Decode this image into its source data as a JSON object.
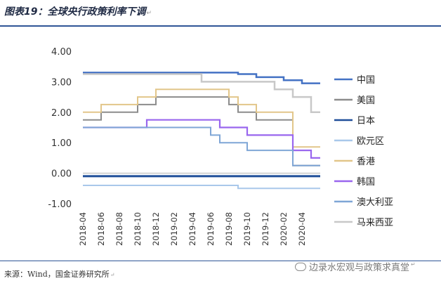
{
  "header": {
    "title": "图表19：全球央行政策利率下调"
  },
  "footer": {
    "source": "来源：Wind，国金证券研究所",
    "watermark": "边录水宏观与政策求真堂"
  },
  "colors": {
    "rule": "#2f5597",
    "zero_line": "#b0b0b0"
  },
  "chart_data": {
    "type": "line",
    "step": true,
    "title": "",
    "xlabel": "",
    "ylabel": "",
    "ylim": [
      -1.0,
      4.0
    ],
    "yticks": [
      "4.00",
      "3.00",
      "2.00",
      "1.00",
      "0.00",
      "-1.00"
    ],
    "ytick_values": [
      4,
      3,
      2,
      1,
      0,
      -1
    ],
    "xlim": [
      "2018-04",
      "2020-06"
    ],
    "x_tick_labels": [
      "2018-04",
      "2018-06",
      "2018-08",
      "2018-10",
      "2018-12",
      "2019-02",
      "2019-04",
      "2019-06",
      "2019-08",
      "2019-10",
      "2019-12",
      "2020-02",
      "2020-04"
    ],
    "grid": false,
    "legend_position": "right",
    "series": [
      {
        "name": "中国",
        "color": "#4472c4",
        "width": 2.5,
        "points": [
          [
            "2018-04",
            3.3
          ],
          [
            "2019-09",
            3.25
          ],
          [
            "2019-11",
            3.15
          ],
          [
            "2020-02",
            3.05
          ],
          [
            "2020-04",
            2.95
          ],
          [
            "2020-06",
            2.95
          ]
        ]
      },
      {
        "name": "美国",
        "color": "#8c8c8c",
        "width": 2,
        "points": [
          [
            "2018-04",
            1.75
          ],
          [
            "2018-06",
            2.0
          ],
          [
            "2018-10",
            2.25
          ],
          [
            "2018-12",
            2.5
          ],
          [
            "2019-08",
            2.25
          ],
          [
            "2019-09",
            2.0
          ],
          [
            "2019-11",
            1.75
          ],
          [
            "2020-03",
            1.25
          ],
          [
            "2020-03",
            0.25
          ],
          [
            "2020-06",
            0.25
          ]
        ]
      },
      {
        "name": "日本",
        "color": "#1f4e99",
        "width": 3,
        "points": [
          [
            "2018-04",
            -0.1
          ],
          [
            "2020-06",
            -0.1
          ]
        ]
      },
      {
        "name": "欧元区",
        "color": "#a9c8ea",
        "width": 2,
        "points": [
          [
            "2018-04",
            -0.4
          ],
          [
            "2019-09",
            -0.5
          ],
          [
            "2020-06",
            -0.5
          ]
        ]
      },
      {
        "name": "香港",
        "color": "#e2c68a",
        "width": 2,
        "points": [
          [
            "2018-04",
            2.0
          ],
          [
            "2018-06",
            2.25
          ],
          [
            "2018-10",
            2.5
          ],
          [
            "2018-12",
            2.75
          ],
          [
            "2019-08",
            2.5
          ],
          [
            "2019-09",
            2.25
          ],
          [
            "2019-11",
            2.0
          ],
          [
            "2020-03",
            1.5
          ],
          [
            "2020-03",
            0.86
          ],
          [
            "2020-06",
            0.86
          ]
        ]
      },
      {
        "name": "韩国",
        "color": "#9966ee",
        "width": 2.2,
        "points": [
          [
            "2018-04",
            1.5
          ],
          [
            "2018-11",
            1.75
          ],
          [
            "2019-07",
            1.5
          ],
          [
            "2019-10",
            1.25
          ],
          [
            "2020-03",
            0.75
          ],
          [
            "2020-05",
            0.5
          ],
          [
            "2020-06",
            0.5
          ]
        ]
      },
      {
        "name": "澳大利亚",
        "color": "#7fa6d6",
        "width": 2,
        "points": [
          [
            "2018-04",
            1.5
          ],
          [
            "2019-06",
            1.25
          ],
          [
            "2019-07",
            1.0
          ],
          [
            "2019-10",
            0.75
          ],
          [
            "2020-03",
            0.5
          ],
          [
            "2020-03",
            0.25
          ],
          [
            "2020-06",
            0.25
          ]
        ]
      },
      {
        "name": "马来西亚",
        "color": "#c8c8c8",
        "width": 2.5,
        "points": [
          [
            "2018-04",
            3.25
          ],
          [
            "2019-05",
            3.0
          ],
          [
            "2020-01",
            2.75
          ],
          [
            "2020-03",
            2.5
          ],
          [
            "2020-05",
            2.0
          ],
          [
            "2020-06",
            2.0
          ]
        ]
      }
    ]
  }
}
